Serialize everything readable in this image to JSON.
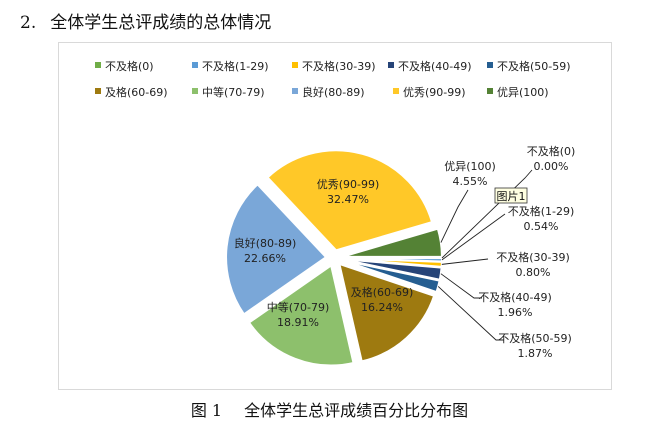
{
  "heading": {
    "number": "2.",
    "text": "全体学生总评成绩的总体情况"
  },
  "caption": {
    "fig_no": "图 1",
    "text": "全体学生总评成绩百分比分布图"
  },
  "tooltip": "图片1",
  "chart_data": {
    "type": "pie",
    "title": "",
    "slices": [
      {
        "name": "不及格(0)",
        "value": 0.0,
        "label": "0.00%",
        "color": "#5b9bd5"
      },
      {
        "name": "不及格(1-29)",
        "value": 0.54,
        "label": "0.54%",
        "color": "#5b9bd5"
      },
      {
        "name": "不及格(30-39)",
        "value": 0.8,
        "label": "0.80%",
        "color": "#ffc000"
      },
      {
        "name": "不及格(40-49)",
        "value": 1.96,
        "label": "1.96%",
        "color": "#264478"
      },
      {
        "name": "不及格(50-59)",
        "value": 1.87,
        "label": "1.87%",
        "color": "#255e91"
      },
      {
        "name": "及格(60-69)",
        "value": 16.24,
        "label": "16.24%",
        "color": "#9e7a10"
      },
      {
        "name": "中等(70-79)",
        "value": 18.91,
        "label": "18.91%",
        "color": "#8dc06c"
      },
      {
        "name": "良好(80-89)",
        "value": 22.66,
        "label": "22.66%",
        "color": "#7aa7d8"
      },
      {
        "name": "优秀(90-99)",
        "value": 32.47,
        "label": "32.47%",
        "color": "#ffc828"
      },
      {
        "name": "优异(100)",
        "value": 4.55,
        "label": "4.55%",
        "color": "#548235"
      }
    ],
    "legend": {
      "placement": "top",
      "row1": [
        "不及格(0)",
        "不及格(1-29)",
        "不及格(30-39)",
        "不及格(40-49)",
        "不及格(50-59)"
      ],
      "row2": [
        "及格(60-69)",
        "中等(70-79)",
        "良好(80-89)",
        "优秀(90-99)",
        "优异(100)"
      ],
      "row1_colors": [
        "#70ad47",
        "#5b9bd5",
        "#ffc000",
        "#264478",
        "#255e91"
      ],
      "row2_colors": [
        "#9e7a10",
        "#8dc06c",
        "#7aa7d8",
        "#ffc828",
        "#548235"
      ]
    }
  }
}
